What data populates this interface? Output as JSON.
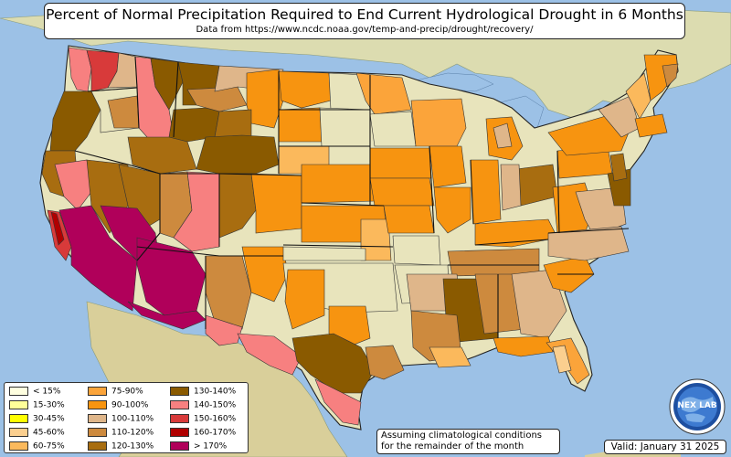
{
  "title": "Percent of Normal Precipitation Required to End Current Hydrological Drought in 6 Months",
  "subtitle": "Data from https://www.ncdc.noaa.gov/temp-and-precip/drought/recovery/",
  "note": [
    "Assuming climatological conditions",
    "for the remainder of the month"
  ],
  "valid": "Valid: January 31 2025",
  "logo": {
    "icon": "nexlab-globe-logo",
    "text": "NEX LAB"
  },
  "legend": [
    {
      "label": "< 15%",
      "color": "#ffffe0"
    },
    {
      "label": "15-30%",
      "color": "#ffff99"
    },
    {
      "label": "30-45%",
      "color": "#ffff00"
    },
    {
      "label": "45-60%",
      "color": "#fbcf8f"
    },
    {
      "label": "60-75%",
      "color": "#fbb95c"
    },
    {
      "label": "75-90%",
      "color": "#fba43a"
    },
    {
      "label": "90-100%",
      "color": "#f79410"
    },
    {
      "label": "100-110%",
      "color": "#dfb68a"
    },
    {
      "label": "110-120%",
      "color": "#cd8a3e"
    },
    {
      "label": "120-130%",
      "color": "#a86d10"
    },
    {
      "label": "130-140%",
      "color": "#8a5a00"
    },
    {
      "label": "140-150%",
      "color": "#f78080"
    },
    {
      "label": "150-160%",
      "color": "#d83a3a"
    },
    {
      "label": "160-170%",
      "color": "#b00000"
    },
    {
      "label": "> 170%",
      "color": "#b0005a"
    }
  ],
  "colors": {
    "ocean": "#9cc1e6",
    "land": "#e8e4bc",
    "terrain": "#c9c39a",
    "border": "#333333"
  }
}
